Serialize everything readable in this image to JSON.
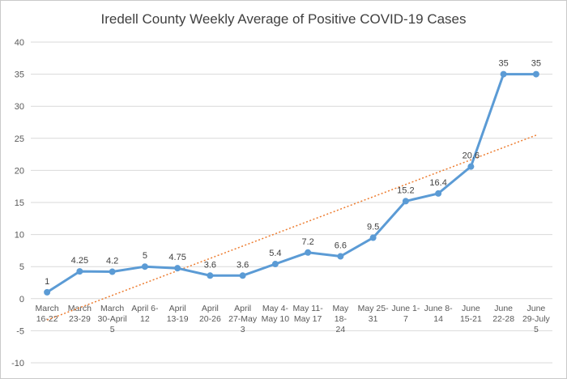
{
  "chart_data": {
    "type": "line",
    "title": "Iredell County Weekly Average of Positive COVID-19 Cases",
    "xlabel": "",
    "ylabel": "",
    "ylim": [
      -10,
      40
    ],
    "yticks": [
      -10,
      -5,
      0,
      5,
      10,
      15,
      20,
      25,
      30,
      35,
      40
    ],
    "grid": true,
    "categories": [
      [
        "March",
        "16-22"
      ],
      [
        "March",
        "23-29"
      ],
      [
        "March",
        "30-April",
        "5"
      ],
      [
        "April 6-",
        "12"
      ],
      [
        "April",
        "13-19"
      ],
      [
        "April",
        "20-26"
      ],
      [
        "April",
        "27-May",
        "3"
      ],
      [
        "May 4-",
        "May 10"
      ],
      [
        "May 11-",
        "May 17"
      ],
      [
        "May",
        "18-",
        "24"
      ],
      [
        "May 25-",
        "31"
      ],
      [
        "June 1-",
        "7"
      ],
      [
        "June 8-",
        "14"
      ],
      [
        "June",
        "15-21"
      ],
      [
        "June",
        "22-28"
      ],
      [
        "June",
        "29-July",
        "5"
      ]
    ],
    "values": [
      1,
      4.25,
      4.2,
      5,
      4.75,
      3.6,
      3.6,
      5.4,
      7.2,
      6.6,
      9.5,
      15.2,
      16.4,
      20.6,
      35,
      35
    ],
    "data_labels": [
      "1",
      "4.25",
      "4.2",
      "5",
      "4.75",
      "3.6",
      "3.6",
      "5.4",
      "7.2",
      "6.6",
      "9.5",
      "15.2",
      "16.4",
      "20.6",
      "35",
      "35"
    ],
    "trendline": {
      "type": "linear",
      "style": "dotted"
    },
    "colors": {
      "series": "#5b9bd5",
      "trendline": "#ed7d31",
      "grid": "#d9d9d9",
      "text": "#595959"
    }
  }
}
